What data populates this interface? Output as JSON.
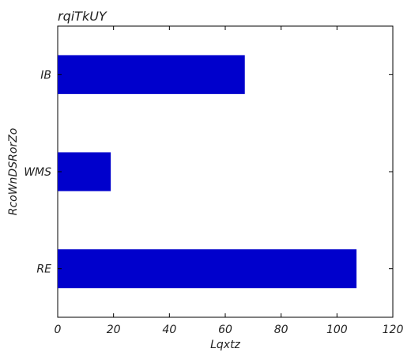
{
  "chart_data": {
    "type": "bar",
    "orientation": "horizontal",
    "title": "rqiTkUY",
    "xlabel": "Lqxtz",
    "ylabel": "RcoWnDSRorZo",
    "categories": [
      "RE",
      "WMS",
      "IB"
    ],
    "values": [
      107,
      19,
      67
    ],
    "xlim": [
      0,
      120
    ],
    "xticks": [
      0,
      20,
      40,
      60,
      80,
      100,
      120
    ],
    "grid": false,
    "bar_color": "#0000cc"
  }
}
